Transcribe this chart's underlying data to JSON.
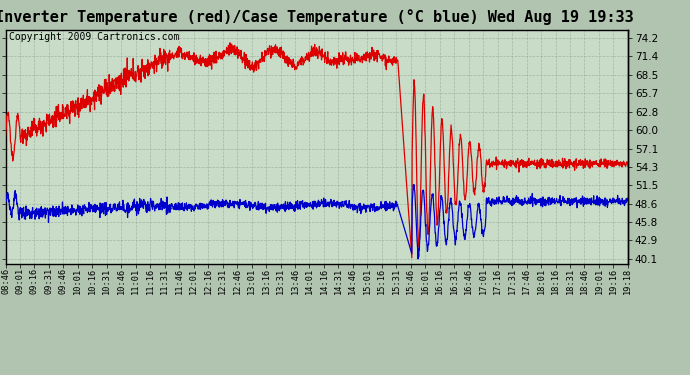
{
  "title": "Inverter Temperature (red)/Case Temperature (°C blue) Wed Aug 19 19:33",
  "copyright": "Copyright 2009 Cartronics.com",
  "yticks": [
    74.2,
    71.4,
    68.5,
    65.7,
    62.8,
    60.0,
    57.1,
    54.3,
    51.5,
    48.6,
    45.8,
    42.9,
    40.1
  ],
  "ylim": [
    39.2,
    75.5
  ],
  "bg_color": "#b0c4b0",
  "plot_bg": "#c8dcc8",
  "grid_color": "#9aaa9a",
  "red_color": "#dd0000",
  "blue_color": "#0000cc",
  "title_fontsize": 11,
  "copyright_fontsize": 7,
  "linewidth": 0.9
}
